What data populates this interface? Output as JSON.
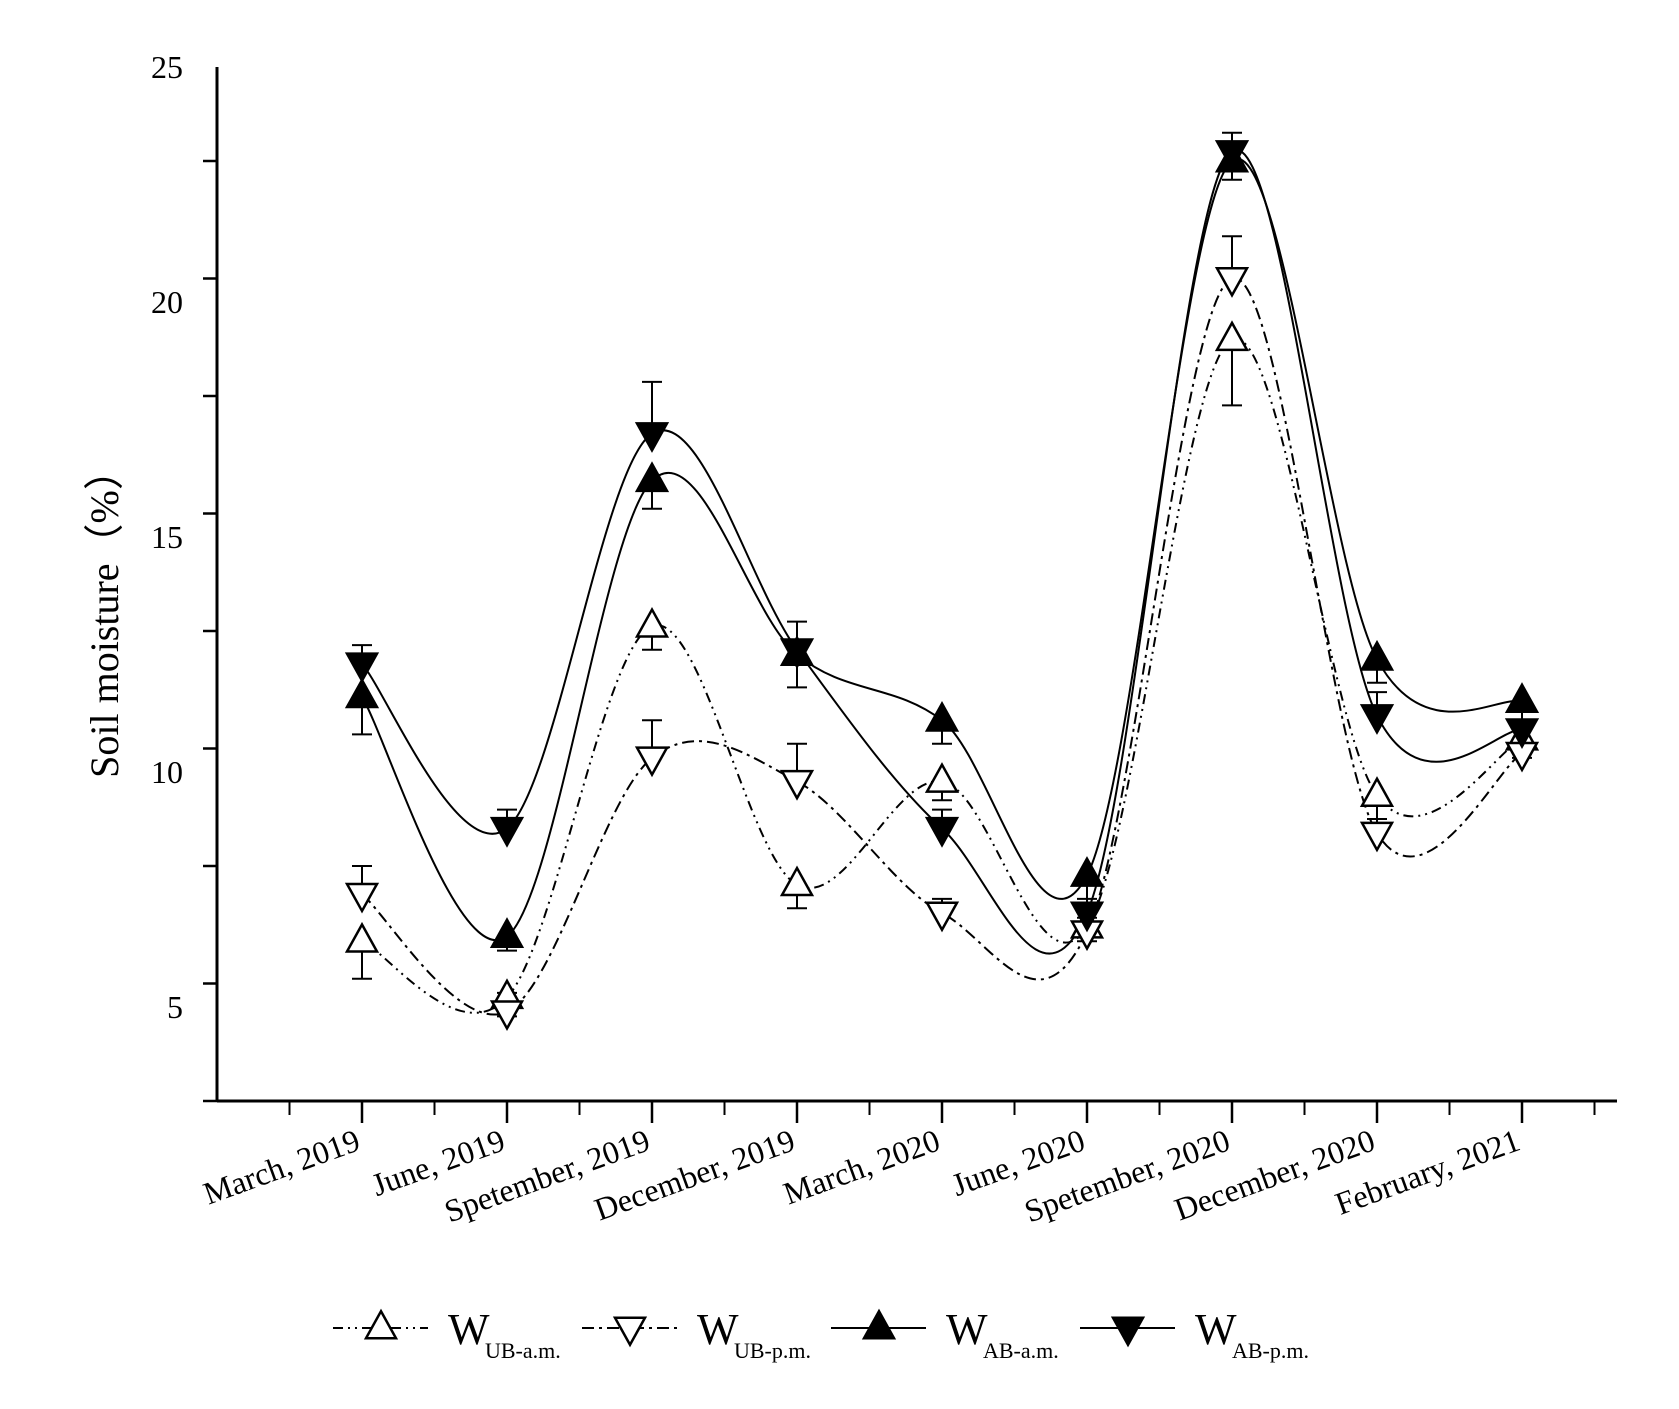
{
  "chart_data": {
    "type": "line",
    "title": "",
    "xlabel": "",
    "ylabel": "Soil moisture（%）",
    "ylim": [
      3,
      25
    ],
    "yticks": [
      5,
      10,
      15,
      20,
      25
    ],
    "grid": false,
    "legend_position": "bottom",
    "categories": [
      "March, 2019",
      "June, 2019",
      "Spetember, 2019",
      "December, 2019",
      "March, 2020",
      "June, 2020",
      "Spetember, 2020",
      "December, 2020",
      "February, 2021"
    ],
    "series": [
      {
        "name": "W",
        "sub": "UB-a.m.",
        "marker": "triangle-up-open",
        "line": "dash-dot-dot",
        "values": [
          6.4,
          5.2,
          13.1,
          7.6,
          9.8,
          6.7,
          19.2,
          9.5,
          10.7
        ],
        "errors": [
          0.8,
          0.4,
          0.5,
          0.5,
          0.4,
          0.3,
          1.4,
          0.5,
          0.4
        ]
      },
      {
        "name": "W",
        "sub": "UB-p.m.",
        "marker": "triangle-down-open",
        "line": "dash-dot",
        "values": [
          7.4,
          4.9,
          10.3,
          9.8,
          7.0,
          6.6,
          20.5,
          8.7,
          10.4
        ],
        "errors": [
          0.6,
          0.4,
          0.8,
          0.8,
          0.3,
          0.3,
          0.9,
          0.3,
          0.6
        ]
      },
      {
        "name": "W",
        "sub": "AB-a.m.",
        "marker": "triangle-up-filled",
        "line": "solid",
        "values": [
          11.6,
          6.5,
          16.2,
          12.5,
          11.1,
          7.8,
          23.0,
          12.4,
          11.5
        ],
        "errors": [
          0.8,
          0.3,
          0.6,
          0.7,
          0.5,
          0.6,
          0.4,
          0.5,
          0.4
        ]
      },
      {
        "name": "W",
        "sub": "AB-p.m.",
        "marker": "triangle-down-filled",
        "line": "solid",
        "values": [
          12.3,
          8.8,
          17.2,
          12.6,
          8.8,
          7.0,
          23.2,
          11.2,
          10.9
        ],
        "errors": [
          0.4,
          0.4,
          1.1,
          0.6,
          0.4,
          0.3,
          0.4,
          0.5,
          0.4
        ]
      }
    ]
  },
  "style": {
    "line_color": "#000000",
    "background": "#ffffff"
  }
}
